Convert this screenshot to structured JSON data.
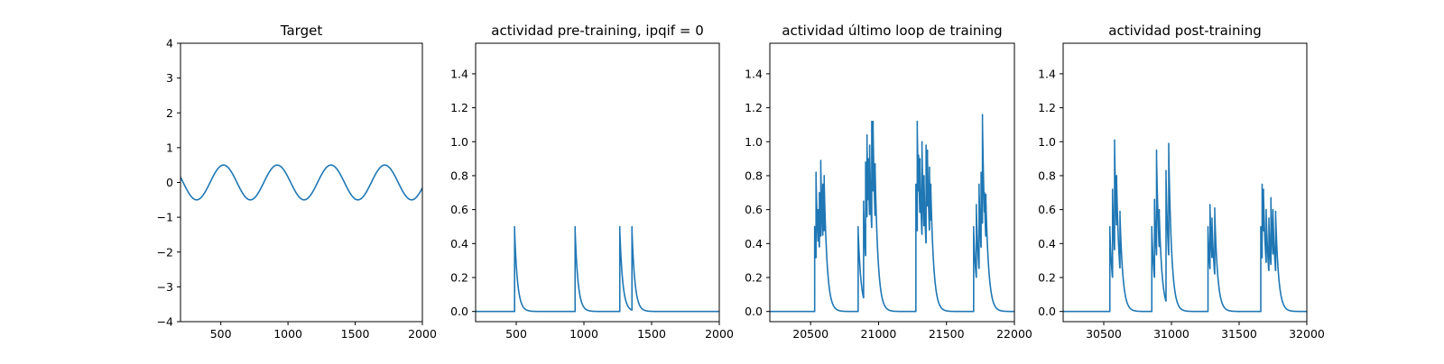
{
  "chart_data": [
    {
      "type": "line",
      "title": "Target",
      "xlabel": "",
      "ylabel": "",
      "xlim": [
        200,
        2000
      ],
      "ylim": [
        -4,
        4
      ],
      "xticks": [
        500,
        1000,
        1500,
        2000
      ],
      "yticks": [
        -4,
        -3,
        -2,
        -1,
        0,
        1,
        2,
        3,
        4
      ],
      "grid": false,
      "color": "#1f77b4",
      "series": [
        {
          "signal": "sine",
          "amplitude": 0.5,
          "period": 400,
          "x_at_first_peak": 520,
          "x": [
            200,
            2000
          ]
        }
      ]
    },
    {
      "type": "line",
      "title": "actividad pre-training, ipqif = 0",
      "xlabel": "",
      "ylabel": "",
      "xlim": [
        200,
        2000
      ],
      "ylim": [
        -0.06,
        1.58
      ],
      "xticks": [
        500,
        1000,
        1500,
        2000
      ],
      "yticks": [
        0.0,
        0.2,
        0.4,
        0.6,
        0.8,
        1.0,
        1.2,
        1.4
      ],
      "ytick_labels": [
        "0.0",
        "0.2",
        "0.4",
        "0.6",
        "0.8",
        "1.0",
        "1.2",
        "1.4"
      ],
      "grid": false,
      "color": "#1f77b4",
      "series": [
        {
          "signal": "spike_decay",
          "decay": 22,
          "x_range": [
            200,
            2000
          ],
          "spikes": [
            [
              488,
              0.5
            ],
            [
              935,
              0.5
            ],
            [
              1265,
              0.5
            ],
            [
              1355,
              0.5
            ]
          ]
        }
      ]
    },
    {
      "type": "line",
      "title": "actividad último loop de training",
      "xlabel": "",
      "ylabel": "",
      "xlim": [
        20200,
        22000
      ],
      "ylim": [
        -0.06,
        1.58
      ],
      "xticks": [
        20500,
        21000,
        21500,
        22000
      ],
      "yticks": [
        0.0,
        0.2,
        0.4,
        0.6,
        0.8,
        1.0,
        1.2,
        1.4
      ],
      "ytick_labels": [
        "0.0",
        "0.2",
        "0.4",
        "0.6",
        "0.8",
        "1.0",
        "1.2",
        "1.4"
      ],
      "grid": false,
      "color": "#1f77b4",
      "series": [
        {
          "signal": "spike_decay",
          "decay": 22,
          "x_range": [
            20200,
            22000
          ],
          "spikes": [
            [
              20530,
              0.5
            ],
            [
              20540,
              0.82
            ],
            [
              20555,
              0.6
            ],
            [
              20565,
              0.7
            ],
            [
              20575,
              0.89
            ],
            [
              20590,
              0.75
            ],
            [
              20600,
              0.8
            ],
            [
              20850,
              0.5
            ],
            [
              20890,
              0.65
            ],
            [
              20905,
              0.88
            ],
            [
              20915,
              1.04
            ],
            [
              20925,
              0.9
            ],
            [
              20935,
              0.98
            ],
            [
              20950,
              1.12
            ],
            [
              20960,
              1.12
            ],
            [
              20975,
              0.87
            ],
            [
              21275,
              0.75
            ],
            [
              21285,
              1.12
            ],
            [
              21295,
              0.92
            ],
            [
              21305,
              0.9
            ],
            [
              21320,
              1.0
            ],
            [
              21335,
              0.8
            ],
            [
              21350,
              0.98
            ],
            [
              21360,
              0.95
            ],
            [
              21375,
              0.85
            ],
            [
              21385,
              0.75
            ],
            [
              21700,
              0.5
            ],
            [
              21720,
              0.63
            ],
            [
              21740,
              0.75
            ],
            [
              21755,
              0.82
            ],
            [
              21765,
              1.16
            ],
            [
              21780,
              0.7
            ],
            [
              21790,
              0.69
            ]
          ]
        }
      ]
    },
    {
      "type": "line",
      "title": "actividad post-training",
      "xlabel": "",
      "ylabel": "",
      "xlim": [
        30200,
        32000
      ],
      "ylim": [
        -0.06,
        1.58
      ],
      "xticks": [
        30500,
        31000,
        31500,
        32000
      ],
      "yticks": [
        0.0,
        0.2,
        0.4,
        0.6,
        0.8,
        1.0,
        1.2,
        1.4
      ],
      "ytick_labels": [
        "0.0",
        "0.2",
        "0.4",
        "0.6",
        "0.8",
        "1.0",
        "1.2",
        "1.4"
      ],
      "grid": false,
      "color": "#1f77b4",
      "series": [
        {
          "signal": "spike_decay",
          "decay": 22,
          "x_range": [
            30200,
            32000
          ],
          "spikes": [
            [
              30545,
              0.5
            ],
            [
              30565,
              0.72
            ],
            [
              30580,
              1.01
            ],
            [
              30595,
              0.8
            ],
            [
              30620,
              0.59
            ],
            [
              30855,
              0.5
            ],
            [
              30875,
              0.66
            ],
            [
              30890,
              0.95
            ],
            [
              30910,
              0.6
            ],
            [
              30960,
              0.83
            ],
            [
              30980,
              0.99
            ],
            [
              31270,
              0.5
            ],
            [
              31285,
              0.63
            ],
            [
              31300,
              0.55
            ],
            [
              31320,
              0.61
            ],
            [
              31660,
              0.5
            ],
            [
              31670,
              0.75
            ],
            [
              31680,
              0.72
            ],
            [
              31700,
              0.6
            ],
            [
              31720,
              0.55
            ],
            [
              31735,
              0.67
            ],
            [
              31750,
              0.6
            ],
            [
              31770,
              0.59
            ]
          ]
        }
      ]
    }
  ]
}
